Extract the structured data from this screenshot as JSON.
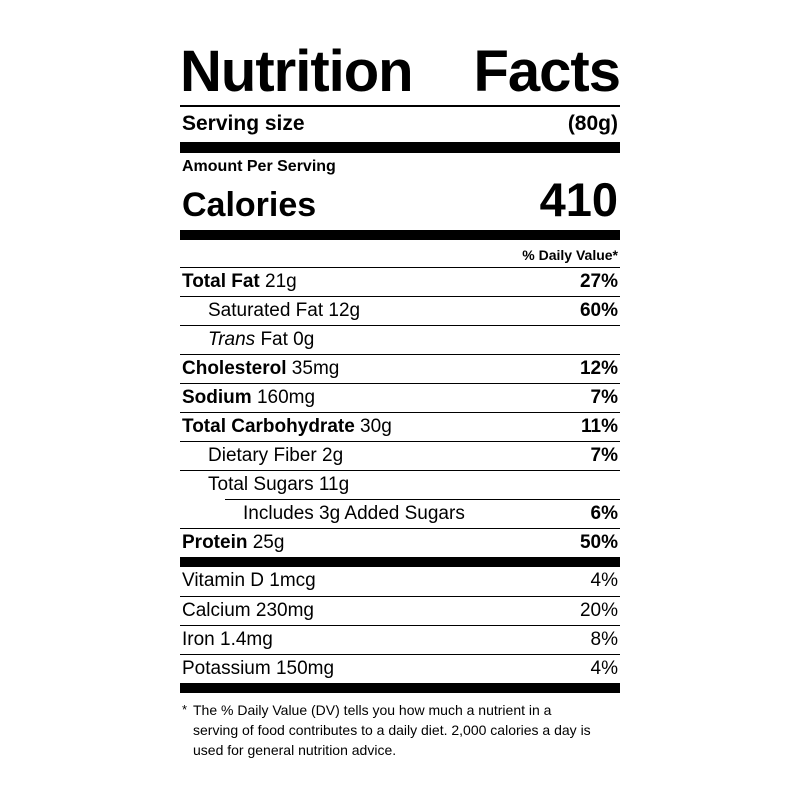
{
  "label": {
    "title": {
      "word1": "Nutrition",
      "word2": "Facts"
    },
    "serving": {
      "label": "Serving size",
      "value": "(80g)"
    },
    "amount_per_serving": "Amount Per Serving",
    "calories": {
      "label": "Calories",
      "value": "410"
    },
    "daily_value_header": "% Daily Value*",
    "nutrients": [
      {
        "bold": "Total Fat",
        "reg": " 21g",
        "pct": "27%"
      },
      {
        "reg": "Saturated Fat 12g",
        "pct": "60%"
      },
      {
        "italic": "Trans",
        "reg": " Fat 0g",
        "pct": ""
      },
      {
        "bold": "Cholesterol",
        "reg": " 35mg",
        "pct": "12%"
      },
      {
        "bold": "Sodium",
        "reg": " 160mg",
        "pct": "7%"
      },
      {
        "bold": "Total Carbohydrate",
        "reg": " 30g",
        "pct": "11%"
      },
      {
        "reg": "Dietary Fiber 2g",
        "pct": "7%"
      },
      {
        "reg": "Total Sugars 11g",
        "pct": ""
      },
      {
        "reg": "Includes 3g Added Sugars",
        "pct": "6%"
      },
      {
        "bold": "Protein",
        "reg": " 25g",
        "pct": "50%"
      }
    ],
    "vitamins": [
      {
        "reg": "Vitamin D 1mcg",
        "pct": "4%"
      },
      {
        "reg": "Calcium 230mg",
        "pct": "20%"
      },
      {
        "reg": "Iron 1.4mg",
        "pct": "8%"
      },
      {
        "reg": "Potassium 150mg",
        "pct": "4%"
      }
    ],
    "footnote": {
      "marker": "*",
      "text": "The % Daily Value (DV) tells you how much a nutrient in a serving of food contributes to a daily diet. 2,000 calories a day is used for general nutrition advice."
    }
  }
}
